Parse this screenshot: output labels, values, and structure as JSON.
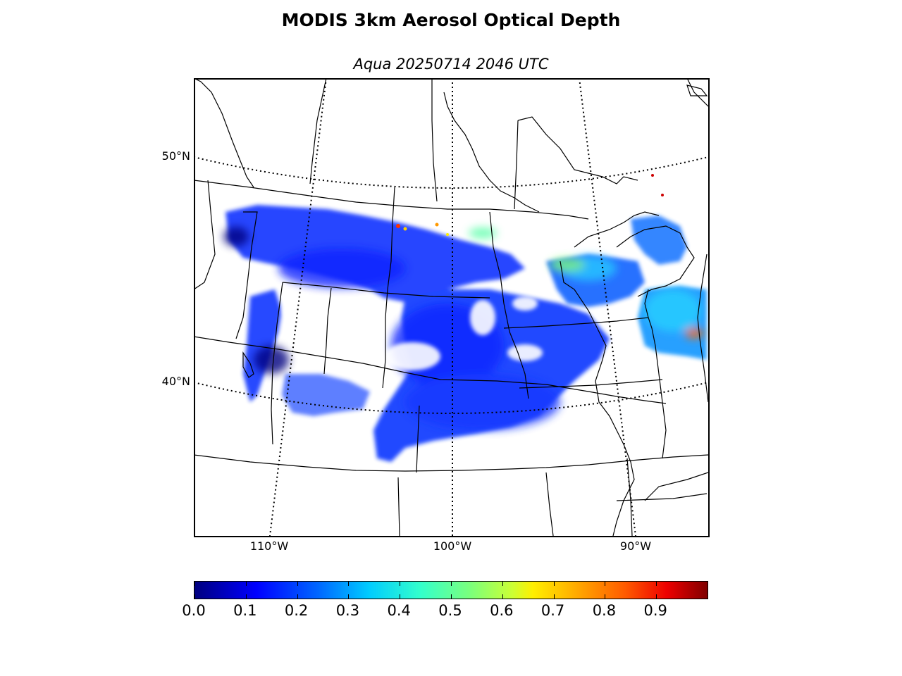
{
  "title": "MODIS 3km Aerosol Optical Depth",
  "subtitle": "Aqua 20250714 2046 UTC",
  "map": {
    "lat_labels": [
      "50°N",
      "40°N"
    ],
    "lon_labels": [
      "110°W",
      "100°W",
      "90°W"
    ]
  },
  "colorbar": {
    "min": 0.0,
    "max": 1.0,
    "tick_labels": [
      "0.0",
      "0.1",
      "0.2",
      "0.3",
      "0.4",
      "0.5",
      "0.6",
      "0.7",
      "0.8",
      "0.9"
    ],
    "colormap": "jet"
  }
}
